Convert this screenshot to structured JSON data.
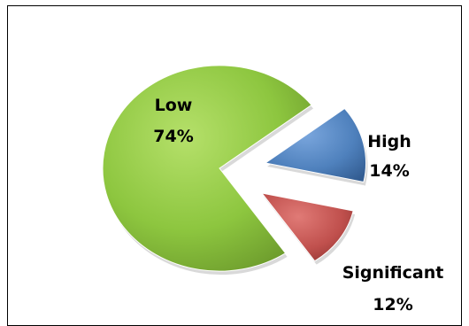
{
  "chart_data": {
    "type": "pie",
    "style": "exploded-3d",
    "slices": [
      {
        "category": "Low",
        "value": 74,
        "value_label": "74%",
        "color": "#8dc63f"
      },
      {
        "category": "High",
        "value": 14,
        "value_label": "14%",
        "color": "#4f81bd"
      },
      {
        "category": "Significant",
        "value": 12,
        "value_label": "12%",
        "color": "#c0504d"
      }
    ],
    "legend": "none",
    "title": ""
  }
}
